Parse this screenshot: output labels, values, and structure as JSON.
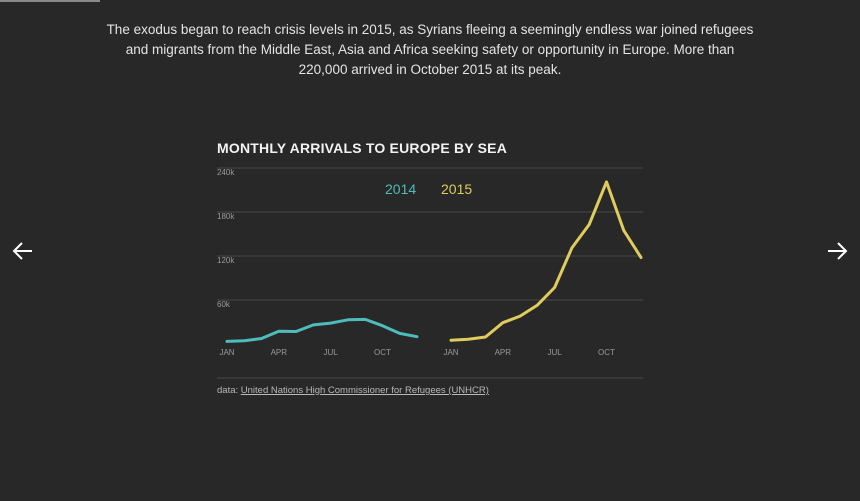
{
  "intro": {
    "text": "The exodus began to reach crisis levels in 2015, as Syrians fleeing a seemingly endless war joined refugees and migrants from the Middle East, Asia and Africa seeking safety or opportunity in Europe. More than 220,000 arrived in October 2015 at its peak."
  },
  "navigation": {
    "prev_icon": "arrow-left-icon",
    "next_icon": "arrow-right-icon"
  },
  "source": {
    "prefix": "data: ",
    "link_text": "United Nations High Commissioner for Refugees (UNHCR)"
  },
  "chart_data": {
    "type": "line",
    "title": "MONTHLY ARRIVALS TO EUROPE BY SEA",
    "xlabel": "",
    "ylabel": "",
    "ylim": [
      0,
      240000
    ],
    "y_ticks": [
      60000,
      120000,
      180000,
      240000
    ],
    "y_tick_labels": [
      "60k",
      "120k",
      "180k",
      "240k"
    ],
    "x": [
      1,
      2,
      3,
      4,
      5,
      6,
      7,
      8,
      9,
      10,
      11,
      12
    ],
    "x_tick_labels": {
      "1": "JAN",
      "4": "APR",
      "7": "JUL",
      "10": "OCT"
    },
    "grid": true,
    "legend": "inline labels above each panel",
    "series": [
      {
        "name": "2014",
        "color": "#4fbcbc",
        "values": [
          3500,
          4500,
          7500,
          17500,
          17000,
          26000,
          28500,
          33000,
          33500,
          25000,
          14500,
          10000
        ]
      },
      {
        "name": "2015",
        "color": "#dfcc5c",
        "values": [
          5000,
          6500,
          9500,
          29000,
          38000,
          53000,
          77000,
          131000,
          163000,
          221000,
          155000,
          118000
        ]
      }
    ]
  }
}
